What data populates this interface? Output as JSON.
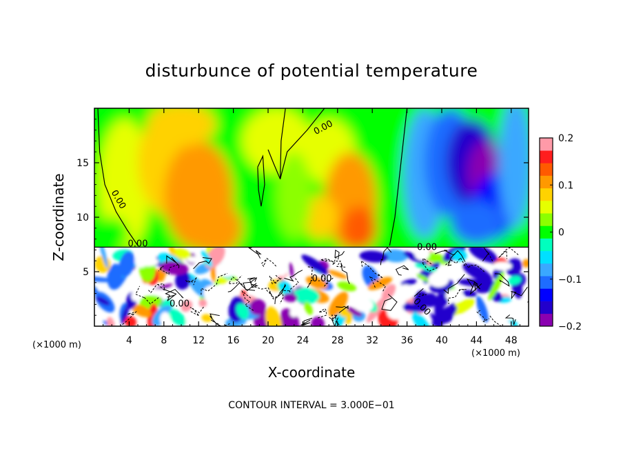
{
  "chart_data": {
    "type": "heatmap",
    "title": "disturbunce of potential temperature",
    "xlabel": "X-coordinate",
    "ylabel": "Z-coordinate",
    "x_unit": "(×1000 m)",
    "x_unit_right": "(×1000 m)",
    "xlim": [
      0,
      50
    ],
    "ylim": [
      0,
      20
    ],
    "x_ticks": [
      4,
      8,
      12,
      16,
      20,
      24,
      28,
      32,
      36,
      40,
      44,
      48
    ],
    "y_ticks": [
      5,
      10,
      15
    ],
    "colorbar": {
      "range": [
        -0.2,
        0.2
      ],
      "tick_values": [
        0.2,
        0.1,
        0,
        -0.1,
        -0.2
      ],
      "tick_labels": [
        "0.2",
        "0.1",
        "0",
        "−0.1",
        "−0.2"
      ],
      "colors": [
        "#8a00b0",
        "#2200cc",
        "#0000ff",
        "#1e6cff",
        "#3aa8ff",
        "#00e0ff",
        "#00ffbe",
        "#00ff00",
        "#8cff00",
        "#e6ff00",
        "#ffd200",
        "#ff9900",
        "#ff5a00",
        "#ff1e1e",
        "#ff9aa8"
      ]
    },
    "contour_labels": [
      "0.00",
      "0.00",
      "0.00",
      "0.00",
      "0.00",
      "0.00",
      "0.00"
    ],
    "note": "CONTOUR INTERVAL = 3.000E−01"
  }
}
